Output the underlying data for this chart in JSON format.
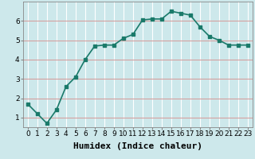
{
  "x": [
    0,
    1,
    2,
    3,
    4,
    5,
    6,
    7,
    8,
    9,
    10,
    11,
    12,
    13,
    14,
    15,
    16,
    17,
    18,
    19,
    20,
    21,
    22,
    23
  ],
  "y": [
    1.7,
    1.2,
    0.7,
    1.4,
    2.6,
    3.1,
    4.0,
    4.7,
    4.75,
    4.75,
    5.1,
    5.3,
    6.05,
    6.1,
    6.1,
    6.5,
    6.4,
    6.3,
    5.7,
    5.2,
    5.0,
    4.75,
    4.75,
    4.75
  ],
  "xlabel": "Humidex (Indice chaleur)",
  "bg_color": "#cde8eb",
  "line_color": "#1a7a6a",
  "marker_color": "#1a7a6a",
  "grid_color": "#ffffff",
  "grid_rcolor": "#e8b0b0",
  "xlim": [
    -0.5,
    23.5
  ],
  "ylim": [
    0.5,
    7.0
  ],
  "yticks": [
    1,
    2,
    3,
    4,
    5,
    6
  ],
  "xticks": [
    0,
    1,
    2,
    3,
    4,
    5,
    6,
    7,
    8,
    9,
    10,
    11,
    12,
    13,
    14,
    15,
    16,
    17,
    18,
    19,
    20,
    21,
    22,
    23
  ],
  "xtick_labels": [
    "0",
    "1",
    "2",
    "3",
    "4",
    "5",
    "6",
    "7",
    "8",
    "9",
    "10",
    "11",
    "12",
    "13",
    "14",
    "15",
    "16",
    "17",
    "18",
    "19",
    "20",
    "21",
    "22",
    "23"
  ],
  "tick_fontsize": 6.5,
  "xlabel_fontsize": 8,
  "line_width": 1.2,
  "marker_size": 2.5
}
